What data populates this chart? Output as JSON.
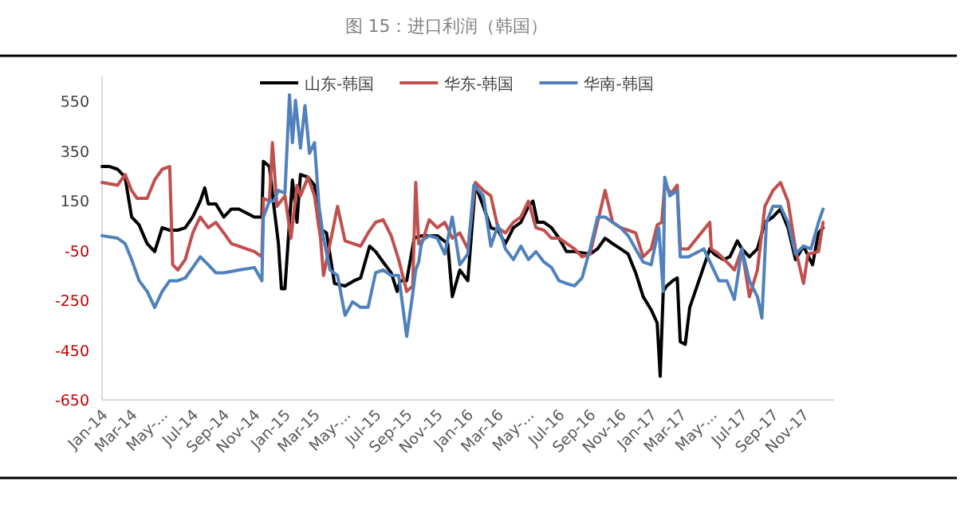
{
  "chart_data": {
    "type": "line",
    "title": "图 15：进口利润（韩国）",
    "legend": "top",
    "line_style": "solid",
    "grid": false,
    "xlim": [
      "2014-01-01",
      "2018-01-01"
    ],
    "ylim": [
      -650,
      650
    ],
    "yticks": [
      -650,
      -450,
      -250,
      -50,
      150,
      350,
      550
    ],
    "xticks": [
      {
        "value": "2014-01-01",
        "label": "Jan-14"
      },
      {
        "value": "2014-03-01",
        "label": "Mar-14"
      },
      {
        "value": "2014-05-01",
        "label": "May-..."
      },
      {
        "value": "2014-07-01",
        "label": "Jul-14"
      },
      {
        "value": "2014-09-01",
        "label": "Sep-14"
      },
      {
        "value": "2014-11-01",
        "label": "Nov-14"
      },
      {
        "value": "2015-01-01",
        "label": "Jan-15"
      },
      {
        "value": "2015-03-01",
        "label": "Mar-15"
      },
      {
        "value": "2015-05-01",
        "label": "May-..."
      },
      {
        "value": "2015-07-01",
        "label": "Jul-15"
      },
      {
        "value": "2015-09-01",
        "label": "Sep-15"
      },
      {
        "value": "2015-11-01",
        "label": "Nov-15"
      },
      {
        "value": "2016-01-01",
        "label": "Jan-16"
      },
      {
        "value": "2016-03-01",
        "label": "Mar-16"
      },
      {
        "value": "2016-05-01",
        "label": "May-..."
      },
      {
        "value": "2016-07-01",
        "label": "Jul-16"
      },
      {
        "value": "2016-09-01",
        "label": "Sep-16"
      },
      {
        "value": "2016-11-01",
        "label": "Nov-16"
      },
      {
        "value": "2017-01-01",
        "label": "Jan-17"
      },
      {
        "value": "2017-03-01",
        "label": "Mar-17"
      },
      {
        "value": "2017-05-01",
        "label": "May-..."
      },
      {
        "value": "2017-07-01",
        "label": "Jul-17"
      },
      {
        "value": "2017-09-01",
        "label": "Sep-17"
      },
      {
        "value": "2017-11-01",
        "label": "Nov-17"
      }
    ],
    "series": [
      {
        "name": "山东-韩国",
        "color": "#000000",
        "x": [
          "2014-01-01",
          "2014-01-16",
          "2014-02-01",
          "2014-02-16",
          "2014-03-01",
          "2014-03-16",
          "2014-04-01",
          "2014-04-16",
          "2014-05-01",
          "2014-05-16",
          "2014-06-01",
          "2014-06-16",
          "2014-07-01",
          "2014-07-16",
          "2014-07-25",
          "2014-08-01",
          "2014-08-16",
          "2014-09-01",
          "2014-09-16",
          "2014-10-01",
          "2014-11-01",
          "2014-11-16",
          "2014-11-19",
          "2014-12-01",
          "2014-12-10",
          "2014-12-19",
          "2014-12-25",
          "2015-01-01",
          "2015-01-10",
          "2015-01-16",
          "2015-01-25",
          "2015-02-01",
          "2015-02-16",
          "2015-03-01",
          "2015-03-10",
          "2015-03-25",
          "2015-04-10",
          "2015-05-01",
          "2015-05-19",
          "2015-06-01",
          "2015-06-19",
          "2015-07-01",
          "2015-07-16",
          "2015-08-01",
          "2015-08-13",
          "2015-08-19",
          "2015-09-01",
          "2015-09-16",
          "2015-10-01",
          "2015-11-01",
          "2015-11-22",
          "2015-12-01",
          "2015-12-16",
          "2016-01-01",
          "2016-01-16",
          "2016-02-01",
          "2016-02-16",
          "2016-03-01",
          "2016-03-16",
          "2016-04-01",
          "2016-04-16",
          "2016-05-01",
          "2016-05-10",
          "2016-05-19",
          "2016-06-01",
          "2016-06-16",
          "2016-07-01",
          "2016-07-16",
          "2016-08-01",
          "2016-09-01",
          "2016-09-16",
          "2016-10-01",
          "2016-10-16",
          "2016-11-01",
          "2016-11-16",
          "2016-12-01",
          "2016-12-16",
          "2017-01-01",
          "2017-01-13",
          "2017-01-19",
          "2017-01-25",
          "2017-02-01",
          "2017-02-13",
          "2017-02-22",
          "2017-02-28",
          "2017-03-10",
          "2017-03-19",
          "2017-04-28",
          "2017-05-07",
          "2017-05-25",
          "2017-06-07",
          "2017-06-22",
          "2017-07-01",
          "2017-07-16",
          "2017-08-01",
          "2017-08-16",
          "2017-09-01",
          "2017-09-16",
          "2017-10-01",
          "2017-10-16",
          "2017-11-01",
          "2017-11-19",
          "2017-12-01",
          "2017-12-10"
        ],
        "values": [
          288,
          288,
          277,
          245,
          85,
          53,
          -22,
          -54,
          42,
          32,
          32,
          42,
          85,
          149,
          202,
          138,
          138,
          85,
          117,
          117,
          85,
          85,
          309,
          288,
          128,
          -22,
          -203,
          -203,
          64,
          234,
          64,
          256,
          245,
          213,
          42,
          21,
          -182,
          -192,
          -171,
          -160,
          -32,
          -54,
          -96,
          -139,
          -214,
          -171,
          -171,
          0,
          10,
          10,
          -22,
          -235,
          -128,
          -171,
          213,
          128,
          42,
          32,
          -22,
          42,
          64,
          128,
          149,
          64,
          64,
          42,
          0,
          -54,
          -54,
          -64,
          -43,
          0,
          -22,
          -43,
          -64,
          -139,
          -235,
          -288,
          -341,
          -555,
          -214,
          -192,
          -171,
          -160,
          -416,
          -427,
          -278,
          -43,
          -64,
          -86,
          -75,
          -11,
          -43,
          -75,
          -43,
          64,
          85,
          117,
          42,
          -86,
          -32,
          -107,
          21,
          42
        ]
      },
      {
        "name": "华东-韩国",
        "color": "#c0504d",
        "x": [
          "2014-01-01",
          "2014-02-01",
          "2014-02-16",
          "2014-03-01",
          "2014-03-12",
          "2014-04-01",
          "2014-04-16",
          "2014-05-01",
          "2014-05-16",
          "2014-05-22",
          "2014-06-01",
          "2014-06-16",
          "2014-07-01",
          "2014-07-16",
          "2014-08-01",
          "2014-08-16",
          "2014-09-01",
          "2014-09-16",
          "2014-10-01",
          "2014-10-16",
          "2014-11-01",
          "2014-11-16",
          "2014-11-19",
          "2014-12-01",
          "2014-12-07",
          "2014-12-16",
          "2015-01-01",
          "2015-01-13",
          "2015-01-25",
          "2015-02-01",
          "2015-02-16",
          "2015-03-01",
          "2015-03-13",
          "2015-03-19",
          "2015-04-01",
          "2015-04-16",
          "2015-05-01",
          "2015-06-01",
          "2015-06-16",
          "2015-07-01",
          "2015-07-16",
          "2015-08-01",
          "2015-08-16",
          "2015-09-01",
          "2015-09-13",
          "2015-09-19",
          "2015-09-25",
          "2015-10-01",
          "2015-10-16",
          "2015-11-01",
          "2015-11-16",
          "2015-12-01",
          "2015-12-16",
          "2016-01-01",
          "2016-01-16",
          "2016-02-01",
          "2016-02-16",
          "2016-03-01",
          "2016-03-16",
          "2016-04-01",
          "2016-04-16",
          "2016-05-01",
          "2016-05-16",
          "2016-06-01",
          "2016-06-16",
          "2016-07-01",
          "2016-08-01",
          "2016-08-16",
          "2016-09-01",
          "2016-09-16",
          "2016-10-01",
          "2016-10-16",
          "2016-11-01",
          "2016-11-16",
          "2016-12-01",
          "2016-12-16",
          "2017-01-01",
          "2017-01-13",
          "2017-01-22",
          "2017-01-28",
          "2017-02-10",
          "2017-02-22",
          "2017-02-28",
          "2017-03-16",
          "2017-04-28",
          "2017-05-01",
          "2017-05-16",
          "2017-06-01",
          "2017-06-16",
          "2017-07-01",
          "2017-07-16",
          "2017-08-01",
          "2017-08-16",
          "2017-09-01",
          "2017-09-16",
          "2017-10-01",
          "2017-10-16",
          "2017-11-01",
          "2017-11-10",
          "2017-12-01",
          "2017-12-10"
        ],
        "values": [
          224,
          213,
          256,
          192,
          160,
          160,
          234,
          277,
          288,
          -107,
          -128,
          -86,
          21,
          85,
          42,
          64,
          21,
          -22,
          -32,
          -43,
          -54,
          -75,
          160,
          149,
          384,
          128,
          170,
          0,
          213,
          170,
          245,
          170,
          0,
          -150,
          -22,
          128,
          -11,
          -32,
          21,
          64,
          74,
          10,
          -86,
          -214,
          -192,
          224,
          -22,
          -22,
          74,
          42,
          64,
          0,
          21,
          -43,
          224,
          192,
          170,
          42,
          21,
          64,
          85,
          149,
          42,
          32,
          0,
          0,
          -43,
          -75,
          -64,
          64,
          192,
          64,
          42,
          32,
          21,
          -75,
          -43,
          53,
          64,
          213,
          181,
          213,
          -43,
          -43,
          64,
          -43,
          -64,
          -96,
          -128,
          -43,
          -235,
          -128,
          128,
          192,
          224,
          149,
          -43,
          -182,
          -64,
          -54,
          64
        ]
      },
      {
        "name": "华南-韩国",
        "color": "#4f81bd",
        "x": [
          "2014-01-01",
          "2014-02-01",
          "2014-02-16",
          "2014-03-01",
          "2014-03-16",
          "2014-04-01",
          "2014-04-16",
          "2014-05-01",
          "2014-05-16",
          "2014-06-01",
          "2014-06-16",
          "2014-07-01",
          "2014-07-16",
          "2014-08-01",
          "2014-08-16",
          "2014-09-01",
          "2014-10-01",
          "2014-11-01",
          "2014-11-16",
          "2014-11-19",
          "2014-12-01",
          "2014-12-10",
          "2014-12-19",
          "2015-01-01",
          "2015-01-10",
          "2015-01-16",
          "2015-01-22",
          "2015-02-01",
          "2015-02-10",
          "2015-02-19",
          "2015-03-01",
          "2015-03-10",
          "2015-03-19",
          "2015-04-01",
          "2015-04-16",
          "2015-05-01",
          "2015-05-16",
          "2015-06-01",
          "2015-06-16",
          "2015-07-01",
          "2015-07-16",
          "2015-08-01",
          "2015-08-16",
          "2015-09-01",
          "2015-09-13",
          "2015-09-19",
          "2015-09-25",
          "2015-10-01",
          "2015-10-16",
          "2015-11-01",
          "2015-11-16",
          "2015-12-01",
          "2015-12-16",
          "2016-01-01",
          "2016-01-13",
          "2016-02-01",
          "2016-02-16",
          "2016-03-01",
          "2016-03-16",
          "2016-04-01",
          "2016-04-16",
          "2016-05-01",
          "2016-05-16",
          "2016-06-01",
          "2016-06-16",
          "2016-07-01",
          "2016-07-16",
          "2016-08-01",
          "2016-08-16",
          "2016-09-01",
          "2016-09-16",
          "2016-10-01",
          "2016-10-16",
          "2016-11-01",
          "2016-11-16",
          "2016-12-01",
          "2016-12-16",
          "2017-01-01",
          "2017-01-16",
          "2017-01-25",
          "2017-01-28",
          "2017-02-07",
          "2017-02-22",
          "2017-02-28",
          "2017-03-16",
          "2017-04-16",
          "2017-05-01",
          "2017-05-16",
          "2017-06-01",
          "2017-06-16",
          "2017-07-01",
          "2017-07-16",
          "2017-08-01",
          "2017-08-10",
          "2017-08-19",
          "2017-09-01",
          "2017-09-16",
          "2017-10-01",
          "2017-10-16",
          "2017-11-01",
          "2017-11-16",
          "2017-12-01",
          "2017-12-10"
        ],
        "values": [
          10,
          0,
          -22,
          -86,
          -171,
          -214,
          -278,
          -214,
          -171,
          -171,
          -160,
          -118,
          -75,
          -107,
          -139,
          -139,
          -128,
          -118,
          -171,
          85,
          149,
          149,
          192,
          181,
          576,
          384,
          554,
          362,
          533,
          341,
          384,
          128,
          0,
          -128,
          -150,
          -310,
          -256,
          -278,
          -278,
          -139,
          -128,
          -150,
          -150,
          -395,
          -224,
          -128,
          -96,
          -11,
          10,
          0,
          -64,
          85,
          -107,
          -64,
          213,
          170,
          -32,
          53,
          -43,
          -86,
          -32,
          -86,
          -54,
          -96,
          -118,
          -171,
          -182,
          -192,
          -160,
          -43,
          85,
          85,
          64,
          42,
          10,
          -43,
          -96,
          -107,
          42,
          -214,
          245,
          170,
          192,
          -75,
          -75,
          -43,
          -107,
          -171,
          -171,
          -246,
          -43,
          -171,
          -235,
          -321,
          64,
          128,
          128,
          64,
          -64,
          -32,
          -43,
          64,
          117
        ]
      }
    ]
  }
}
